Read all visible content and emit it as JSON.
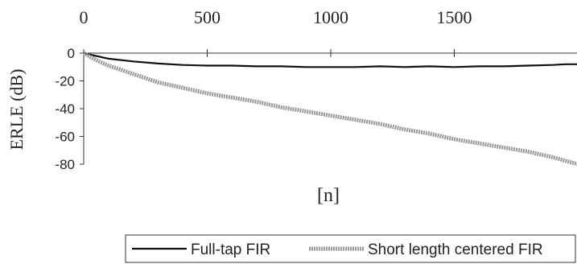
{
  "chart_data": {
    "type": "line",
    "title": "",
    "xlabel": "[n]",
    "ylabel": "ERLE (dB)",
    "xlim": [
      0,
      2000
    ],
    "ylim": [
      -80,
      0
    ],
    "x_ticks": [
      "0",
      "500",
      "1000",
      "1500"
    ],
    "y_ticks": [
      "0",
      "-20",
      "-40",
      "-60",
      "-80"
    ],
    "x_axis_position": "top",
    "grid": false,
    "legend_position": "bottom-right",
    "series": [
      {
        "name": "Full-tap FIR",
        "color": "#111111",
        "x": [
          0,
          50,
          100,
          200,
          300,
          400,
          500,
          600,
          700,
          800,
          900,
          1000,
          1100,
          1200,
          1300,
          1400,
          1500,
          1600,
          1700,
          1800,
          1900,
          1950,
          2000
        ],
        "values": [
          0,
          -2,
          -4,
          -6,
          -7.5,
          -8.5,
          -9,
          -9,
          -9.5,
          -9.5,
          -10,
          -10,
          -10,
          -9.5,
          -10,
          -9.5,
          -10,
          -9.5,
          -9.5,
          -9,
          -8.5,
          -8,
          -8
        ]
      },
      {
        "name": "Short length centered FIR",
        "color": "#999999",
        "x": [
          0,
          50,
          100,
          200,
          300,
          400,
          500,
          600,
          700,
          800,
          900,
          1000,
          1100,
          1200,
          1300,
          1400,
          1500,
          1600,
          1700,
          1800,
          1900,
          2000
        ],
        "values": [
          0,
          -5,
          -9,
          -15,
          -21,
          -25,
          -29,
          -32,
          -35,
          -39,
          -42,
          -45,
          -48,
          -51,
          -55,
          -58,
          -62,
          -65,
          -68,
          -71,
          -75,
          -80
        ]
      }
    ]
  }
}
